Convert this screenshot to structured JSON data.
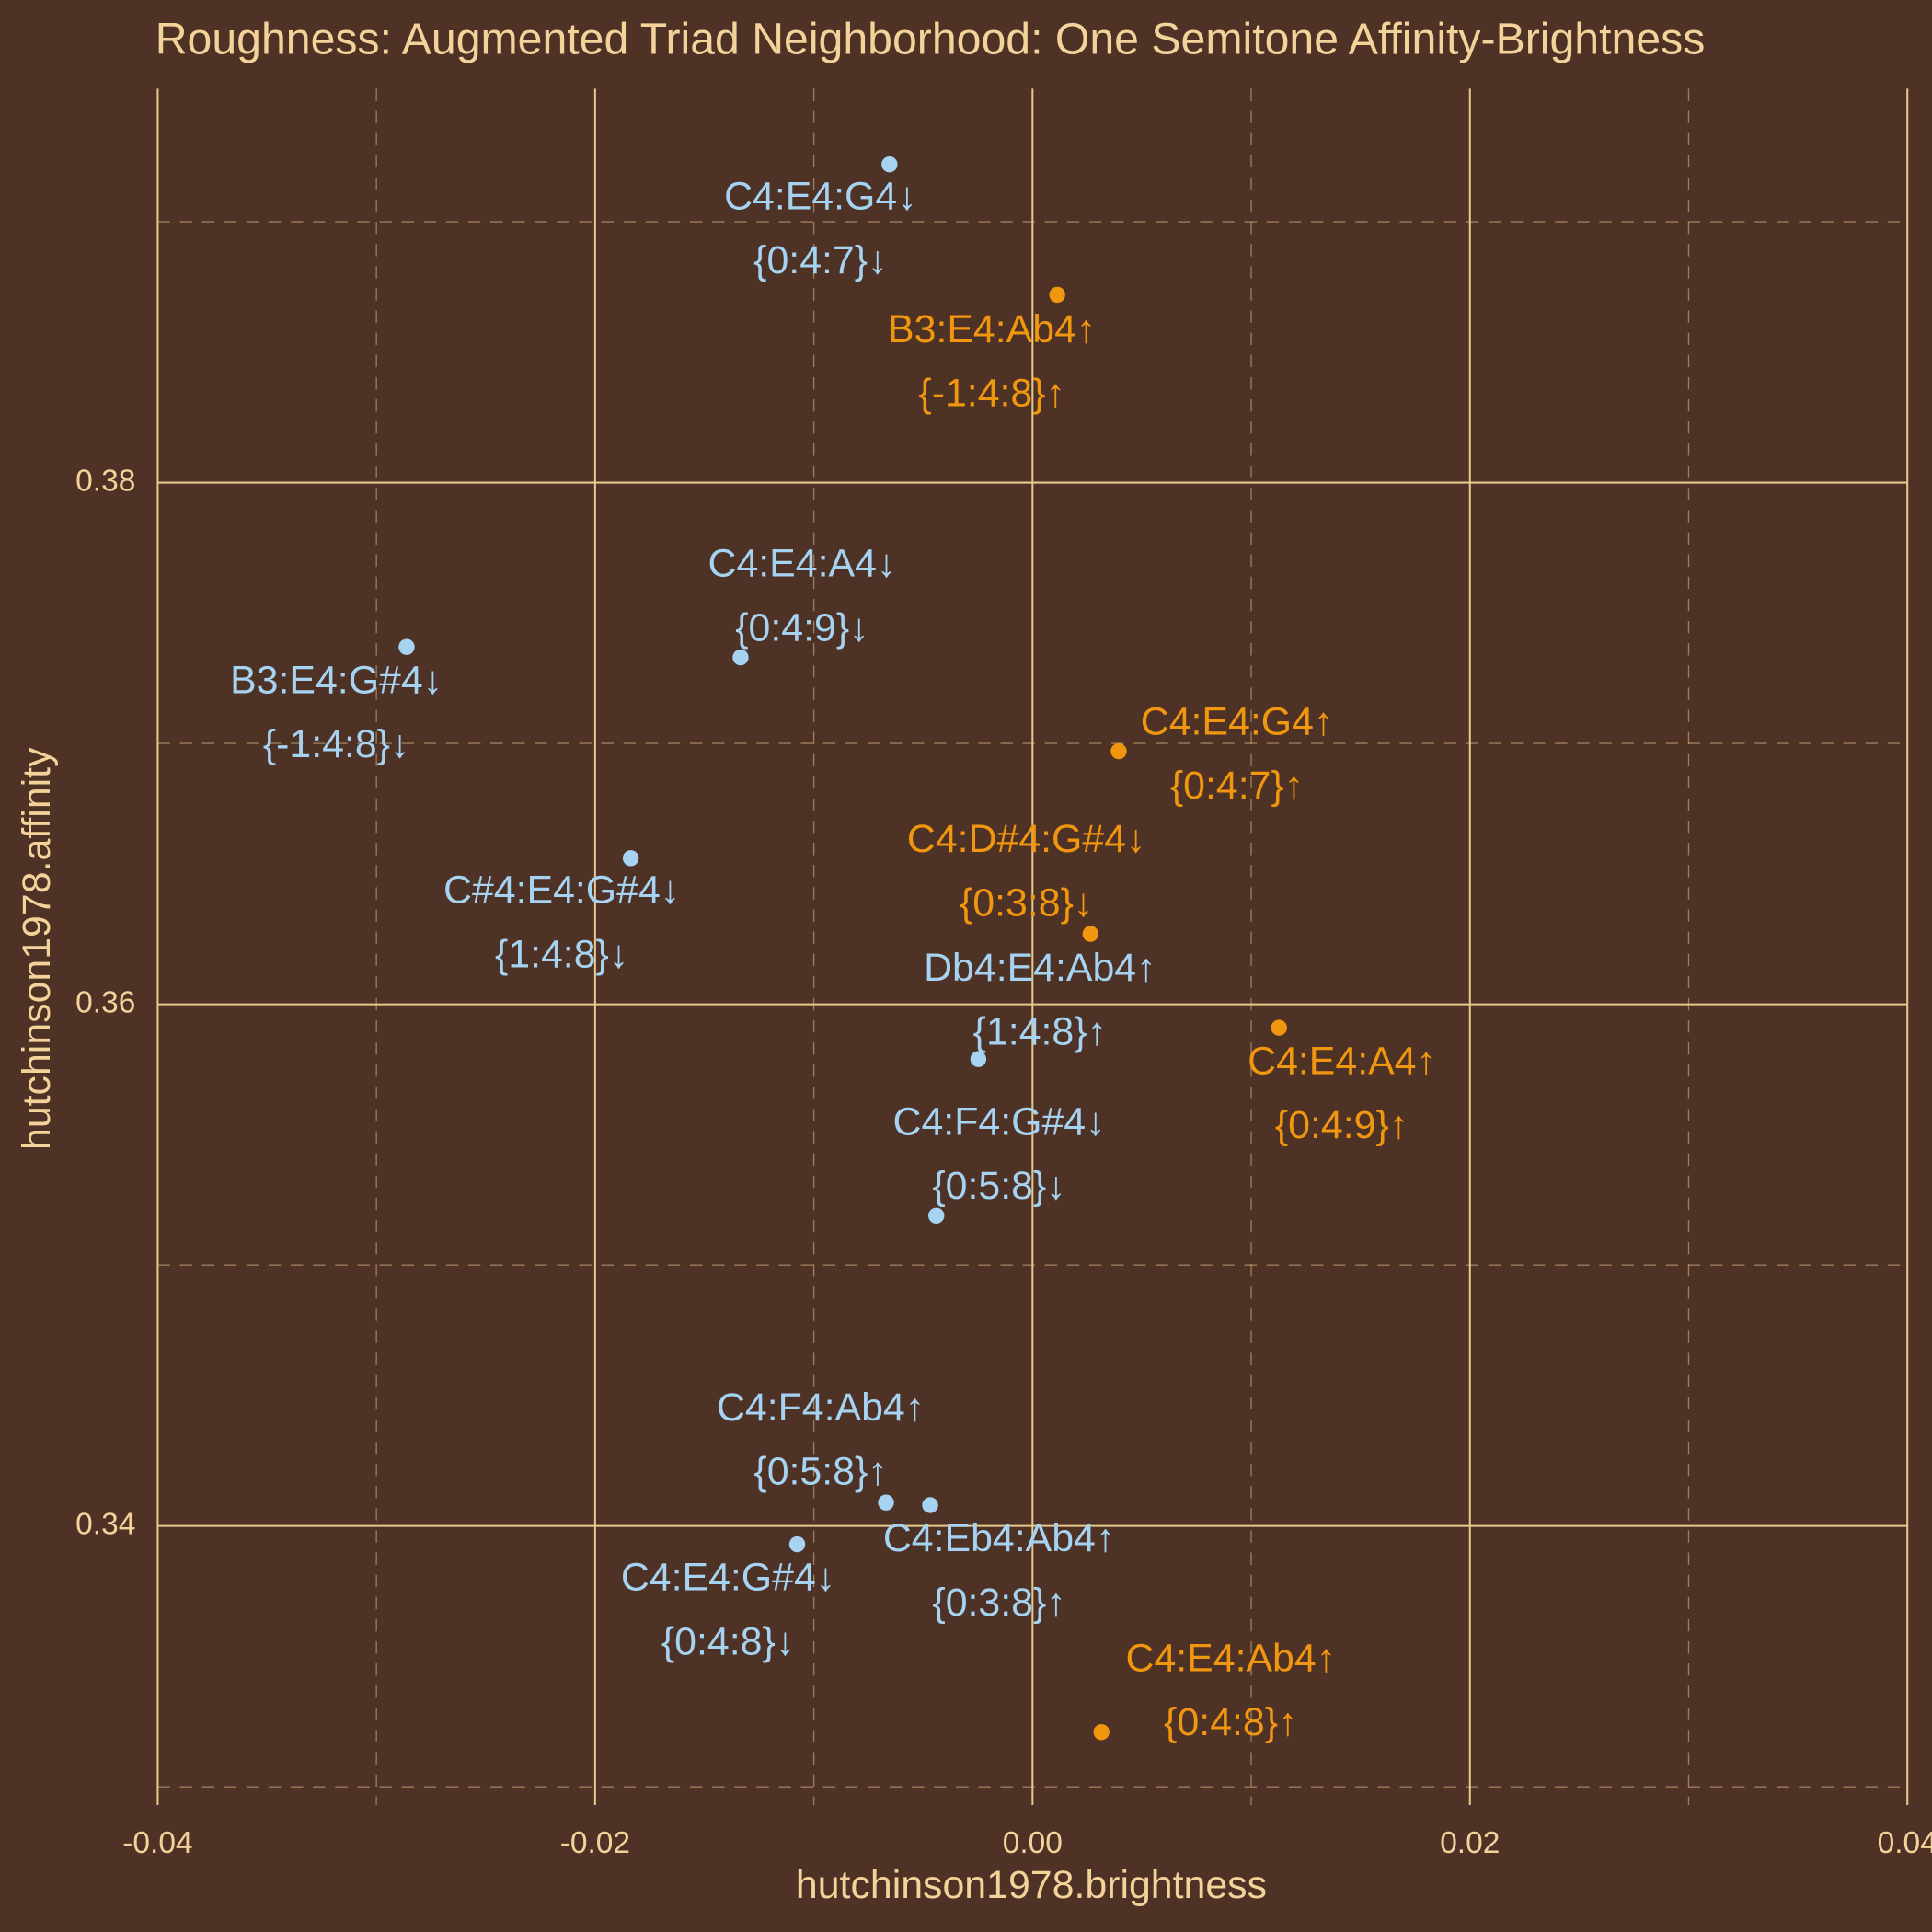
{
  "chart_data": {
    "type": "scatter",
    "title": "Roughness: Augmented Triad Neighborhood: One Semitone Affinity-Brightness",
    "x_label": "hutchinson1978.brightness",
    "y_label": "hutchinson1978.affinity",
    "xlim": [
      -0.04,
      0.04
    ],
    "ylim": [
      0.3293,
      0.3951
    ],
    "xticks": [
      -0.04,
      -0.02,
      {
        "value": 0,
        "label": "0.00"
      },
      0.02,
      0.04
    ],
    "yticks": [
      0.34,
      0.36,
      0.38
    ],
    "x_minor_ticks": [
      -0.03,
      -0.01,
      0.01,
      0.03
    ],
    "y_minor_ticks": [
      0.33,
      0.35,
      0.37,
      0.39
    ],
    "grid": true,
    "points": [
      {
        "x": -0.00654,
        "y": 0.3922,
        "label": "C4:E4:G4↓",
        "set": "{0:4:7}↓",
        "color": "#a5d3f1"
      },
      {
        "x": -0.01335,
        "y": 0.3733,
        "label": "C4:E4:A4↓",
        "set": "{0:4:9}↓",
        "color": "#a5d3f1"
      },
      {
        "x": -0.02862,
        "y": 0.3737,
        "label": "B3:E4:G#4↓",
        "set": "{-1:4:8}↓",
        "color": "#a5d3f1"
      },
      {
        "x": -0.01837,
        "y": 0.3656,
        "label": "C#4:E4:G#4↓",
        "set": "{1:4:8}↓",
        "color": "#a5d3f1"
      },
      {
        "x": -0.00248,
        "y": 0.3579,
        "label": "Db4:E4:Ab4↑",
        "set": "{1:4:8}↑",
        "color": "#a5d3f1"
      },
      {
        "x": -0.0044,
        "y": 0.3519,
        "label": "C4:F4:G#4↓",
        "set": "{0:5:8}↓",
        "color": "#a5d3f1"
      },
      {
        "x": -0.0067,
        "y": 0.3409,
        "label": "C4:F4:Ab4↑",
        "set": "{0:5:8}↑",
        "color": "#a5d3f1"
      },
      {
        "x": -0.00468,
        "y": 0.3408,
        "label": "C4:Eb4:Ab4↑",
        "set": "{0:3:8}↑",
        "color": "#a5d3f1"
      },
      {
        "x": -0.01076,
        "y": 0.3393,
        "label": "C4:E4:G#4↓",
        "set": "{0:4:8}↓",
        "color": "#a5d3f1"
      },
      {
        "x": 0.00113,
        "y": 0.3872,
        "label": "B3:E4:Ab4↑",
        "set": "{-1:4:8}↑",
        "color": "#f0960f"
      },
      {
        "x": 0.00394,
        "y": 0.3697,
        "label": "C4:E4:G4↑",
        "set": "{0:4:7}↑",
        "color": "#f0960f"
      },
      {
        "x": 0.00265,
        "y": 0.3627,
        "label": "C4:D#4:G#4↓",
        "set": "{0:3:8}↓",
        "color": "#f0960f"
      },
      {
        "x": 0.01127,
        "y": 0.3591,
        "label": "C4:E4:A4↑",
        "set": "{0:4:9}↑",
        "color": "#f0960f"
      },
      {
        "x": 0.00315,
        "y": 0.3321,
        "label": "C4:E4:Ab4↑",
        "set": "{0:4:8}↑",
        "color": "#f0960f"
      }
    ]
  }
}
